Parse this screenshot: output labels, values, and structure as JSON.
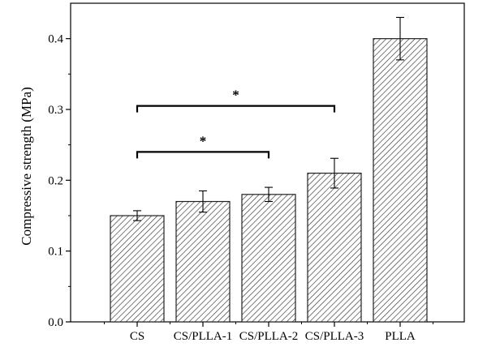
{
  "chart_data": {
    "type": "bar",
    "title": "",
    "xlabel": "",
    "ylabel": "Compressive strength (MPa)",
    "ylim": [
      0.0,
      0.45
    ],
    "yticks": [
      "0.0",
      "0.1",
      "0.2",
      "0.3",
      "0.4"
    ],
    "yticks_values": [
      0.0,
      0.1,
      0.2,
      0.3,
      0.4
    ],
    "grid": false,
    "bar_fill": "diagonal-hatch",
    "categories": [
      "CS",
      "CS/PLLA-1",
      "CS/PLLA-2",
      "CS/PLLA-3",
      "PLLA"
    ],
    "values": [
      0.15,
      0.17,
      0.18,
      0.21,
      0.4
    ],
    "errors": [
      0.007,
      0.015,
      0.01,
      0.021,
      0.03
    ],
    "significance": [
      {
        "from": "CS",
        "to": "CS/PLLA-2",
        "y": 0.24,
        "label": "*"
      },
      {
        "from": "CS",
        "to": "CS/PLLA-3",
        "y": 0.305,
        "label": "*"
      }
    ],
    "colors": {
      "bar_stroke": "#222222",
      "hatch": "#333333"
    }
  }
}
